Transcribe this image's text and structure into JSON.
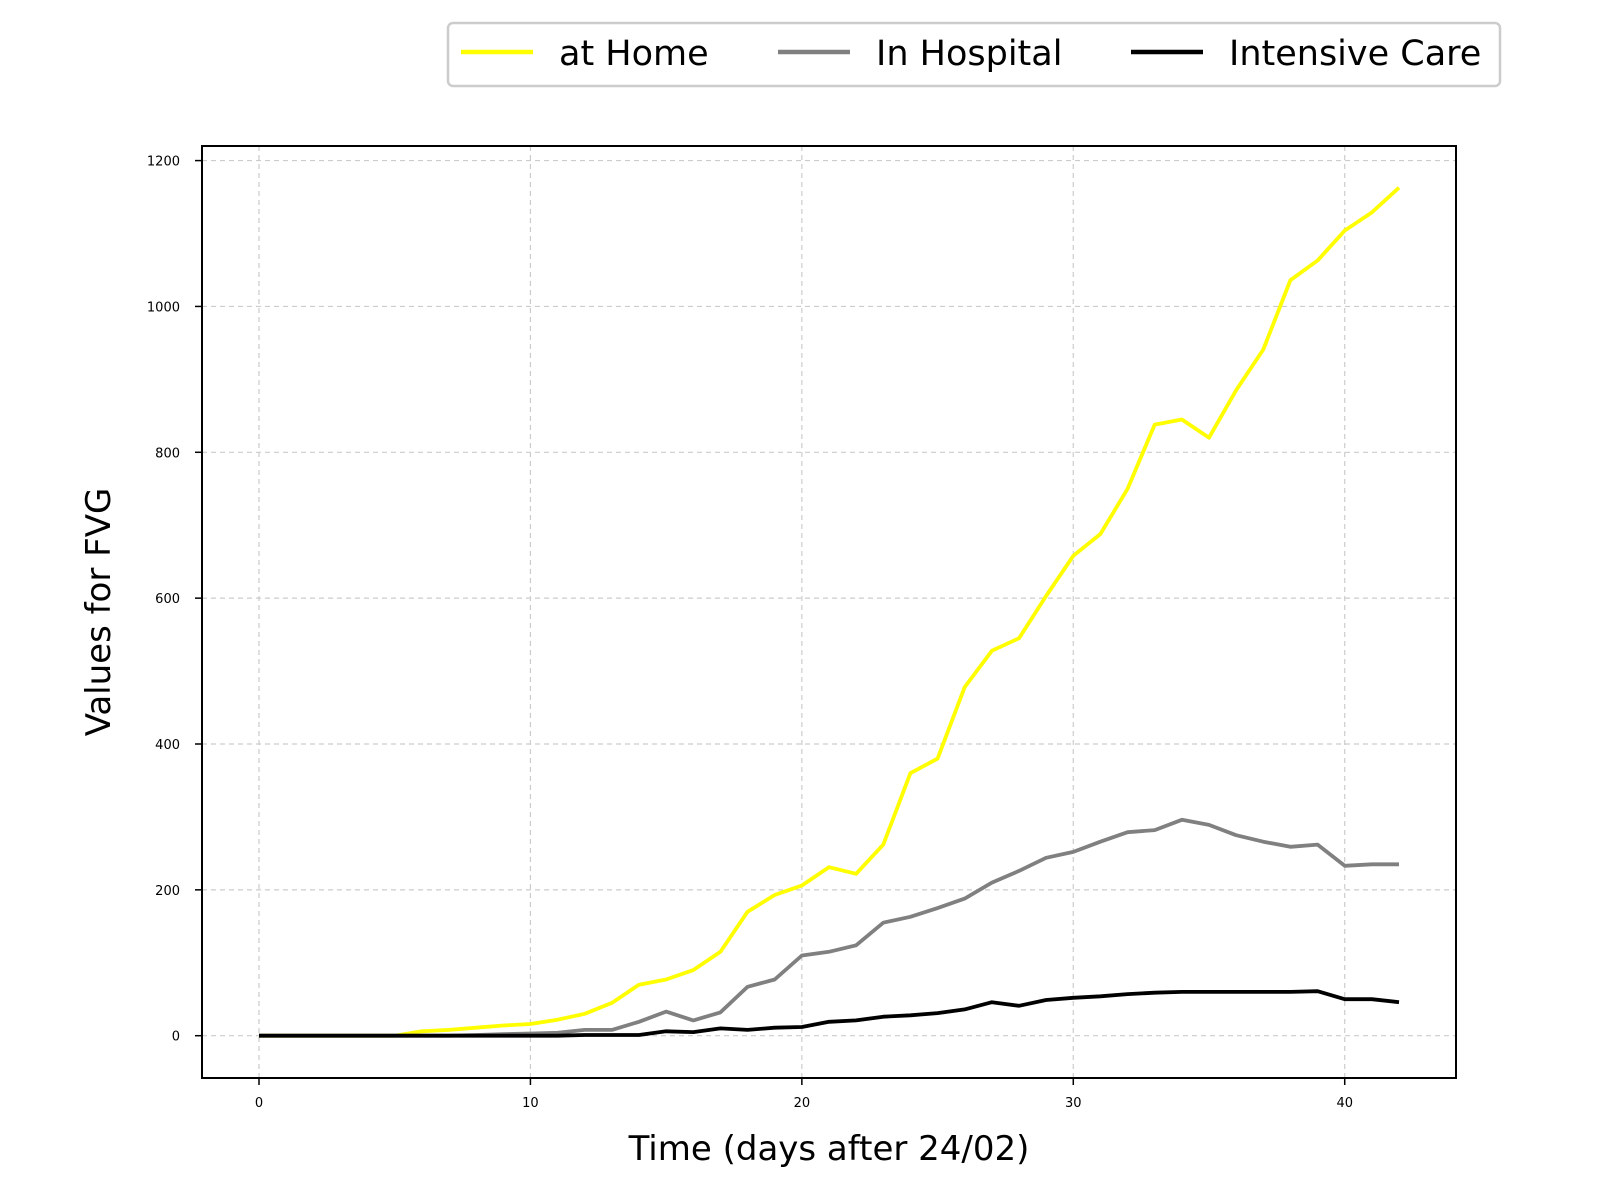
{
  "chart_data": {
    "type": "line",
    "title": "",
    "xlabel": "Time (days after 24/02)",
    "ylabel": "Values for FVG",
    "xlim": [
      -2.1,
      44.1
    ],
    "ylim": [
      -58,
      1220
    ],
    "x_ticks": [
      0,
      10,
      20,
      30,
      40
    ],
    "y_ticks": [
      0,
      200,
      400,
      600,
      800,
      1000,
      1200
    ],
    "grid": true,
    "legend_position": "top-right, above plot",
    "series": [
      {
        "name": "at Home",
        "color": "#ffff00",
        "x": [
          0,
          1,
          2,
          3,
          4,
          5,
          6,
          7,
          8,
          9,
          10,
          11,
          12,
          13,
          14,
          15,
          16,
          17,
          18,
          19,
          20,
          21,
          22,
          23,
          24,
          25,
          26,
          27,
          28,
          29,
          30,
          31,
          32,
          33,
          34,
          35,
          36,
          37,
          38,
          39,
          40,
          41,
          42
        ],
        "values": [
          0,
          0,
          0,
          0,
          0,
          0,
          6,
          8,
          11,
          14,
          16,
          22,
          30,
          45,
          70,
          77,
          90,
          115,
          170,
          193,
          206,
          231,
          222,
          262,
          360,
          380,
          478,
          528,
          545,
          603,
          658,
          688,
          750,
          838,
          845,
          820,
          885,
          941,
          1036,
          1063,
          1104,
          1129,
          1163
        ]
      },
      {
        "name": "In Hospital",
        "color": "#808080",
        "x": [
          0,
          1,
          2,
          3,
          4,
          5,
          6,
          7,
          8,
          9,
          10,
          11,
          12,
          13,
          14,
          15,
          16,
          17,
          18,
          19,
          20,
          21,
          22,
          23,
          24,
          25,
          26,
          27,
          28,
          29,
          30,
          31,
          32,
          33,
          34,
          35,
          36,
          37,
          38,
          39,
          40,
          41,
          42
        ],
        "values": [
          0,
          0,
          0,
          0,
          0,
          0,
          0,
          0,
          1,
          2,
          3,
          4,
          8,
          8,
          19,
          33,
          21,
          32,
          67,
          77,
          110,
          115,
          124,
          155,
          163,
          175,
          188,
          210,
          226,
          244,
          252,
          266,
          279,
          282,
          296,
          289,
          275,
          266,
          259,
          262,
          233,
          235,
          235
        ]
      },
      {
        "name": "Intensive Care",
        "color": "#000000",
        "x": [
          0,
          1,
          2,
          3,
          4,
          5,
          6,
          7,
          8,
          9,
          10,
          11,
          12,
          13,
          14,
          15,
          16,
          17,
          18,
          19,
          20,
          21,
          22,
          23,
          24,
          25,
          26,
          27,
          28,
          29,
          30,
          31,
          32,
          33,
          34,
          35,
          36,
          37,
          38,
          39,
          40,
          41,
          42
        ],
        "values": [
          0,
          0,
          0,
          0,
          0,
          0,
          0,
          0,
          0,
          0,
          0,
          0,
          1,
          1,
          1,
          6,
          5,
          10,
          8,
          11,
          12,
          19,
          21,
          26,
          28,
          31,
          36,
          46,
          41,
          49,
          52,
          54,
          57,
          59,
          60,
          60,
          60,
          60,
          60,
          61,
          50,
          50,
          46
        ]
      }
    ]
  }
}
